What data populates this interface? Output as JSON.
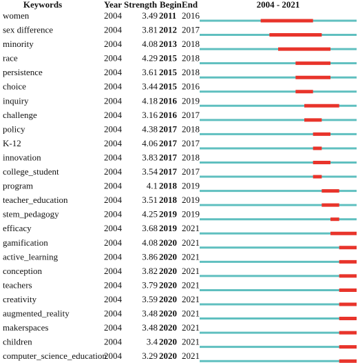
{
  "header": {
    "keywords": "Keywords",
    "year": "Year",
    "strength": "Strength",
    "begin": "Begin",
    "end": "End"
  },
  "timeline": {
    "label": "2004 - 2021",
    "start": 2004,
    "end": 2021
  },
  "table": {
    "rows": [
      [
        "women",
        2004,
        3.49,
        2011,
        2016
      ],
      [
        "sex difference",
        2004,
        3.81,
        2012,
        2017
      ],
      [
        "minority",
        2004,
        4.08,
        2013,
        2018
      ],
      [
        "race",
        2004,
        4.29,
        2015,
        2018
      ],
      [
        "persistence",
        2004,
        3.61,
        2015,
        2018
      ],
      [
        "choice",
        2004,
        3.44,
        2015,
        2016
      ],
      [
        "inquiry",
        2004,
        4.18,
        2016,
        2019
      ],
      [
        "challenge",
        2004,
        3.16,
        2016,
        2017
      ],
      [
        "policy",
        2004,
        4.38,
        2017,
        2018
      ],
      [
        "K-12",
        2004,
        4.06,
        2017,
        2017
      ],
      [
        "innovation",
        2004,
        3.83,
        2017,
        2018
      ],
      [
        "college_student",
        2004,
        3.54,
        2017,
        2017
      ],
      [
        "program",
        2004,
        4.1,
        2018,
        2019
      ],
      [
        "teacher_education",
        2004,
        3.51,
        2018,
        2019
      ],
      [
        "stem_pedagogy",
        2004,
        4.25,
        2019,
        2019
      ],
      [
        "efficacy",
        2004,
        3.68,
        2019,
        2021
      ],
      [
        "gamification",
        2004,
        4.08,
        2020,
        2021
      ],
      [
        "active_learning",
        2004,
        3.86,
        2020,
        2021
      ],
      [
        "conception",
        2004,
        3.82,
        2020,
        2021
      ],
      [
        "teachers",
        2004,
        3.79,
        2020,
        2021
      ],
      [
        "creativity",
        2004,
        3.59,
        2020,
        2021
      ],
      [
        "augmented_reality",
        2004,
        3.48,
        2020,
        2021
      ],
      [
        "makerspaces",
        2004,
        3.48,
        2020,
        2021
      ],
      [
        "children",
        2004,
        3.4,
        2020,
        2021
      ],
      [
        "computer_science_education",
        2004,
        3.29,
        2020,
        2021
      ]
    ]
  }
}
